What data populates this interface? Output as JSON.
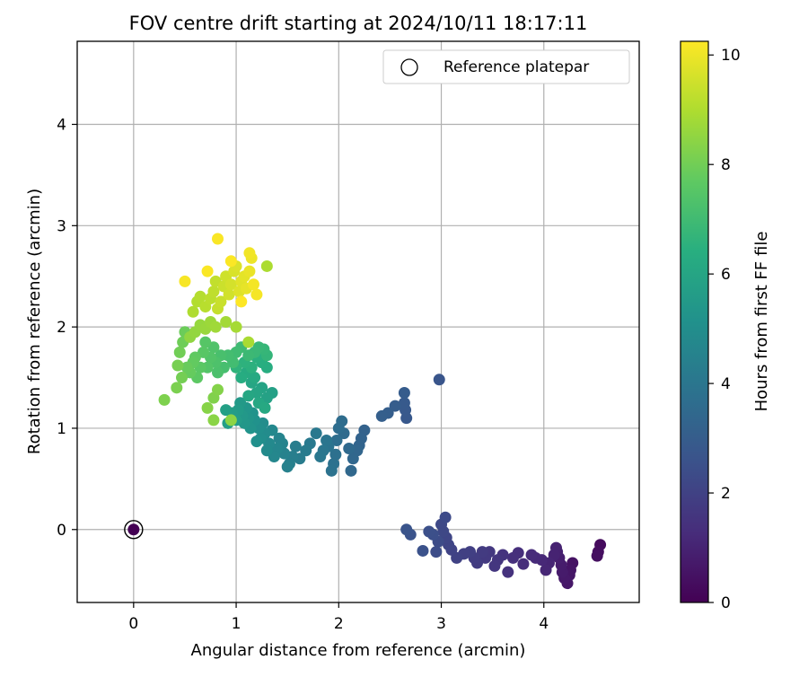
{
  "chart_data": {
    "type": "scatter",
    "title": "FOV centre drift starting at 2024/10/11 18:17:11",
    "xlabel": "Angular distance from reference (arcmin)",
    "ylabel": "Rotation from reference (arcmin)",
    "xlim": [
      -0.55,
      4.93
    ],
    "ylim": [
      -0.72,
      4.82
    ],
    "xticks": [
      0,
      1,
      2,
      3,
      4
    ],
    "yticks": [
      0,
      1,
      2,
      3,
      4
    ],
    "grid": true,
    "legend": {
      "position": "top-right",
      "entries": [
        {
          "label": "Reference platepar",
          "marker": "open-circle"
        }
      ]
    },
    "colorbar": {
      "label": "Hours from first FF file",
      "colormap": "viridis",
      "range": [
        0,
        10.25
      ],
      "ticks": [
        0,
        2,
        4,
        6,
        8,
        10
      ]
    },
    "reference_point": {
      "x": 0,
      "y": 0
    },
    "series": [
      {
        "color_by": "hours",
        "points": [
          [
            0,
            0,
            0
          ],
          [
            4.55,
            -0.15,
            0.3
          ],
          [
            4.53,
            -0.22,
            0.35
          ],
          [
            4.52,
            -0.26,
            0.4
          ],
          [
            4.28,
            -0.33,
            0.5
          ],
          [
            4.26,
            -0.4,
            0.55
          ],
          [
            4.25,
            -0.45,
            0.6
          ],
          [
            4.23,
            -0.53,
            0.65
          ],
          [
            4.2,
            -0.48,
            0.7
          ],
          [
            4.18,
            -0.42,
            0.75
          ],
          [
            4.17,
            -0.35,
            0.8
          ],
          [
            4.15,
            -0.28,
            0.85
          ],
          [
            4.13,
            -0.22,
            0.9
          ],
          [
            4.12,
            -0.18,
            0.95
          ],
          [
            4.1,
            -0.25,
            1.0
          ],
          [
            4.05,
            -0.33,
            1.05
          ],
          [
            4.02,
            -0.4,
            1.1
          ],
          [
            3.98,
            -0.3,
            1.15
          ],
          [
            3.92,
            -0.28,
            1.2
          ],
          [
            3.88,
            -0.25,
            1.25
          ],
          [
            3.8,
            -0.34,
            1.3
          ],
          [
            3.75,
            -0.23,
            1.35
          ],
          [
            3.7,
            -0.28,
            1.4
          ],
          [
            3.65,
            -0.42,
            1.45
          ],
          [
            3.6,
            -0.25,
            1.5
          ],
          [
            3.55,
            -0.3,
            1.55
          ],
          [
            3.52,
            -0.36,
            1.6
          ],
          [
            3.47,
            -0.22,
            1.65
          ],
          [
            3.43,
            -0.28,
            1.7
          ],
          [
            3.4,
            -0.22,
            1.75
          ],
          [
            3.35,
            -0.33,
            1.8
          ],
          [
            3.32,
            -0.28,
            1.85
          ],
          [
            3.28,
            -0.22,
            1.9
          ],
          [
            3.22,
            -0.24,
            1.95
          ],
          [
            3.15,
            -0.28,
            2.0
          ],
          [
            3.1,
            -0.2,
            2.05
          ],
          [
            3.07,
            -0.15,
            2.1
          ],
          [
            3.05,
            -0.08,
            2.15
          ],
          [
            3.02,
            -0.02,
            2.2
          ],
          [
            3.0,
            0.05,
            2.25
          ],
          [
            3.04,
            0.12,
            2.3
          ],
          [
            2.97,
            -0.12,
            2.35
          ],
          [
            2.95,
            -0.22,
            2.4
          ],
          [
            2.92,
            -0.05,
            2.45
          ],
          [
            2.88,
            -0.02,
            2.5
          ],
          [
            2.82,
            -0.21,
            2.55
          ],
          [
            2.7,
            -0.05,
            2.6
          ],
          [
            2.66,
            0.0,
            2.65
          ],
          [
            2.98,
            1.48,
            2.7
          ],
          [
            2.66,
            1.1,
            2.8
          ],
          [
            2.65,
            1.18,
            2.85
          ],
          [
            2.64,
            1.25,
            2.9
          ],
          [
            2.64,
            1.35,
            2.95
          ],
          [
            2.55,
            1.22,
            3.0
          ],
          [
            2.48,
            1.15,
            3.05
          ],
          [
            2.42,
            1.12,
            3.1
          ],
          [
            2.25,
            0.98,
            3.2
          ],
          [
            2.22,
            0.9,
            3.25
          ],
          [
            2.2,
            0.83,
            3.3
          ],
          [
            2.18,
            0.78,
            3.35
          ],
          [
            2.14,
            0.7,
            3.4
          ],
          [
            2.12,
            0.58,
            3.45
          ],
          [
            2.1,
            0.8,
            3.5
          ],
          [
            2.05,
            0.95,
            3.55
          ],
          [
            2.03,
            1.07,
            3.6
          ],
          [
            2.0,
            1.0,
            3.65
          ],
          [
            1.98,
            0.88,
            3.7
          ],
          [
            1.97,
            0.74,
            3.75
          ],
          [
            1.95,
            0.65,
            3.8
          ],
          [
            1.93,
            0.58,
            3.85
          ],
          [
            1.9,
            0.82,
            3.9
          ],
          [
            1.88,
            0.88,
            3.95
          ],
          [
            1.85,
            0.78,
            4.0
          ],
          [
            1.82,
            0.72,
            4.05
          ],
          [
            1.78,
            0.95,
            4.1
          ],
          [
            1.72,
            0.85,
            4.15
          ],
          [
            1.68,
            0.78,
            4.2
          ],
          [
            1.62,
            0.7,
            4.25
          ],
          [
            1.58,
            0.82,
            4.3
          ],
          [
            1.55,
            0.72,
            4.35
          ],
          [
            1.52,
            0.65,
            4.4
          ],
          [
            1.5,
            0.62,
            4.45
          ],
          [
            1.47,
            0.75,
            4.5
          ],
          [
            1.45,
            0.85,
            4.55
          ],
          [
            1.42,
            0.9,
            4.6
          ],
          [
            1.4,
            0.8,
            4.65
          ],
          [
            1.37,
            0.72,
            4.7
          ],
          [
            1.35,
            0.98,
            4.75
          ],
          [
            1.32,
            0.85,
            4.8
          ],
          [
            1.3,
            0.78,
            4.85
          ],
          [
            1.28,
            0.95,
            4.9
          ],
          [
            1.26,
            1.05,
            4.95
          ],
          [
            1.24,
            0.9,
            5.0
          ],
          [
            1.22,
            1.0,
            5.05
          ],
          [
            1.2,
            0.87,
            5.1
          ],
          [
            1.18,
            1.08,
            5.15
          ],
          [
            1.16,
            1.15,
            5.2
          ],
          [
            1.14,
            1.0,
            5.25
          ],
          [
            1.12,
            1.1,
            5.3
          ],
          [
            1.1,
            1.2,
            5.35
          ],
          [
            1.08,
            1.05,
            5.4
          ],
          [
            1.06,
            1.12,
            5.45
          ],
          [
            1.04,
            1.25,
            5.5
          ],
          [
            1.02,
            1.18,
            5.55
          ],
          [
            1.0,
            1.08,
            5.6
          ],
          [
            0.96,
            1.15,
            5.65
          ],
          [
            0.92,
            1.05,
            5.7
          ],
          [
            0.9,
            1.18,
            5.75
          ],
          [
            1.35,
            1.35,
            5.8
          ],
          [
            1.3,
            1.3,
            5.85
          ],
          [
            1.25,
            1.4,
            5.9
          ],
          [
            1.2,
            1.35,
            5.95
          ],
          [
            1.15,
            1.45,
            6.0
          ],
          [
            1.12,
            1.32,
            6.05
          ],
          [
            1.22,
            1.25,
            6.1
          ],
          [
            1.28,
            1.2,
            6.15
          ],
          [
            1.18,
            1.5,
            6.2
          ],
          [
            1.1,
            1.55,
            6.25
          ],
          [
            1.05,
            1.5,
            6.3
          ],
          [
            1.3,
            1.6,
            6.35
          ],
          [
            1.25,
            1.65,
            6.4
          ],
          [
            1.2,
            1.7,
            6.45
          ],
          [
            1.15,
            1.6,
            6.5
          ],
          [
            1.08,
            1.65,
            6.55
          ],
          [
            1.0,
            1.6,
            6.6
          ],
          [
            0.95,
            1.7,
            6.65
          ],
          [
            1.3,
            1.72,
            6.7
          ],
          [
            1.27,
            1.78,
            6.75
          ],
          [
            1.22,
            1.8,
            6.8
          ],
          [
            1.18,
            1.75,
            6.85
          ],
          [
            1.12,
            1.72,
            6.9
          ],
          [
            1.05,
            1.8,
            6.95
          ],
          [
            1.0,
            1.75,
            7.0
          ],
          [
            0.97,
            1.65,
            7.05
          ],
          [
            0.92,
            1.72,
            7.1
          ],
          [
            0.88,
            1.6,
            7.15
          ],
          [
            0.85,
            1.72,
            7.2
          ],
          [
            0.82,
            1.55,
            7.25
          ],
          [
            0.8,
            1.65,
            7.3
          ],
          [
            0.78,
            1.8,
            7.35
          ],
          [
            0.75,
            1.7,
            7.4
          ],
          [
            0.72,
            1.6,
            7.45
          ],
          [
            0.7,
            1.85,
            7.5
          ],
          [
            0.68,
            1.75,
            7.55
          ],
          [
            0.65,
            1.6,
            7.6
          ],
          [
            0.62,
            1.5,
            7.65
          ],
          [
            0.6,
            1.7,
            7.7
          ],
          [
            0.58,
            1.65,
            7.75
          ],
          [
            0.55,
            1.55,
            7.8
          ],
          [
            0.52,
            1.6,
            7.85
          ],
          [
            0.5,
            1.95,
            7.9
          ],
          [
            0.48,
            1.85,
            7.95
          ],
          [
            0.45,
            1.75,
            8.0
          ],
          [
            0.47,
            1.5,
            8.05
          ],
          [
            0.43,
            1.62,
            8.1
          ],
          [
            0.42,
            1.4,
            8.15
          ],
          [
            0.3,
            1.28,
            8.2
          ],
          [
            0.78,
            1.3,
            8.25
          ],
          [
            0.82,
            1.38,
            8.3
          ],
          [
            0.72,
            1.2,
            8.35
          ],
          [
            0.78,
            1.08,
            8.4
          ],
          [
            0.95,
            1.08,
            8.45
          ],
          [
            0.55,
            1.9,
            8.5
          ],
          [
            0.6,
            1.95,
            8.55
          ],
          [
            0.65,
            2.02,
            8.6
          ],
          [
            0.7,
            1.98,
            8.65
          ],
          [
            0.75,
            2.05,
            8.7
          ],
          [
            0.8,
            2.0,
            8.75
          ],
          [
            0.9,
            2.05,
            8.8
          ],
          [
            1.0,
            2.0,
            8.85
          ],
          [
            1.12,
            1.85,
            8.9
          ],
          [
            1.3,
            2.6,
            8.95
          ],
          [
            0.58,
            2.15,
            9.0
          ],
          [
            0.62,
            2.25,
            9.05
          ],
          [
            0.65,
            2.3,
            9.1
          ],
          [
            0.7,
            2.2,
            9.15
          ],
          [
            0.75,
            2.28,
            9.2
          ],
          [
            0.78,
            2.35,
            9.25
          ],
          [
            0.8,
            2.45,
            9.3
          ],
          [
            0.82,
            2.18,
            9.35
          ],
          [
            0.85,
            2.25,
            9.4
          ],
          [
            0.88,
            2.4,
            9.45
          ],
          [
            0.9,
            2.5,
            9.5
          ],
          [
            0.93,
            2.32,
            9.55
          ],
          [
            0.95,
            2.42,
            9.6
          ],
          [
            0.98,
            2.55,
            9.65
          ],
          [
            1.0,
            2.6,
            9.7
          ],
          [
            1.03,
            2.35,
            9.75
          ],
          [
            1.05,
            2.45,
            9.8
          ],
          [
            1.08,
            2.5,
            9.85
          ],
          [
            1.1,
            2.38,
            9.9
          ],
          [
            1.13,
            2.55,
            9.95
          ],
          [
            1.15,
            2.68,
            10.0
          ],
          [
            1.13,
            2.73,
            10.05
          ],
          [
            1.17,
            2.42,
            10.1
          ],
          [
            1.2,
            2.32,
            10.12
          ],
          [
            0.5,
            2.45,
            10.15
          ],
          [
            0.82,
            2.87,
            10.18
          ],
          [
            0.72,
            2.55,
            10.2
          ],
          [
            0.95,
            2.65,
            10.22
          ],
          [
            1.05,
            2.25,
            10.25
          ]
        ]
      }
    ]
  }
}
